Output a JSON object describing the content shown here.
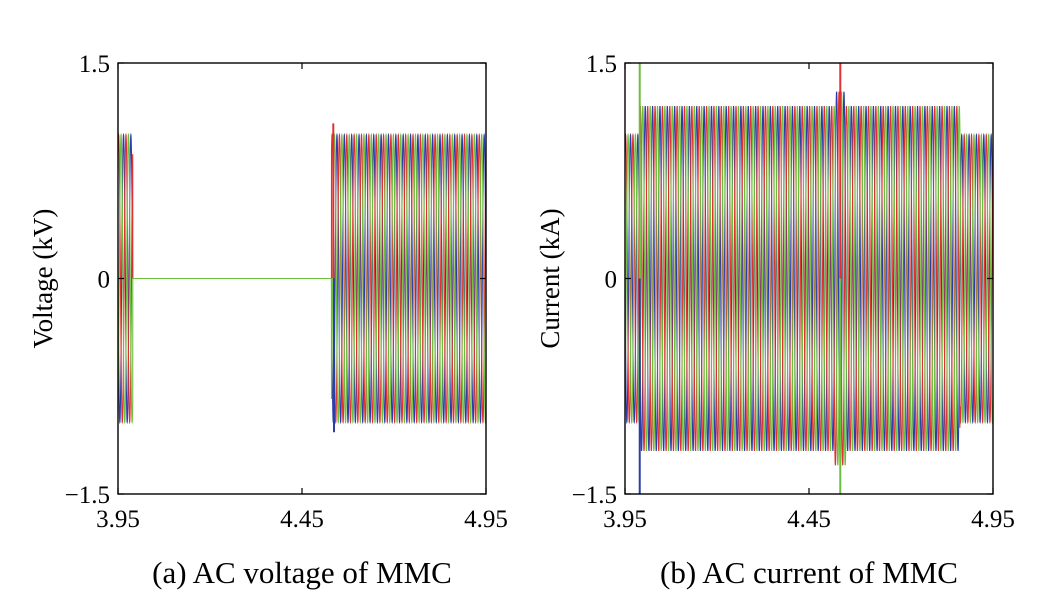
{
  "chart_data": [
    {
      "type": "line",
      "caption": "(a) AC voltage of MMC",
      "ylabel": "Voltage (kV)",
      "xlabel": "",
      "xlim": [
        3.95,
        4.95
      ],
      "ylim": [
        -1.5,
        1.5
      ],
      "xticks": [
        3.95,
        4.45,
        4.95
      ],
      "xtick_labels": [
        "3.95",
        "4.45",
        "4.95"
      ],
      "yticks": [
        -1.5,
        0,
        1.5
      ],
      "ytick_labels": [
        "−1.5",
        "0",
        "1.5"
      ],
      "grid": false,
      "legend": "none",
      "frequency_hz": 50,
      "series": [
        {
          "color": "#2b3ea8",
          "phase_deg": 0
        },
        {
          "color": "#e03030",
          "phase_deg": -120
        },
        {
          "color": "#6cbf3c",
          "phase_deg": 120
        }
      ],
      "envelope": [
        {
          "t0": 3.95,
          "t1": 3.99,
          "amplitude": 1.0
        },
        {
          "t0": 3.99,
          "t1": 4.53,
          "amplitude": 0.0
        },
        {
          "t0": 4.53,
          "t1": 4.95,
          "amplitude": 1.0
        }
      ],
      "transients": [
        {
          "t": 4.535,
          "value": 1.08,
          "color": "#e03030"
        },
        {
          "t": 4.537,
          "value": -1.07,
          "color": "#2b3ea8"
        }
      ]
    },
    {
      "type": "line",
      "caption": "(b) AC current of MMC",
      "ylabel": "Current (kA)",
      "xlabel": "",
      "xlim": [
        3.95,
        4.95
      ],
      "ylim": [
        -1.5,
        1.5
      ],
      "xticks": [
        3.95,
        4.45,
        4.95
      ],
      "xtick_labels": [
        "3.95",
        "4.45",
        "4.95"
      ],
      "yticks": [
        -1.5,
        0,
        1.5
      ],
      "ytick_labels": [
        "−1.5",
        "0",
        "1.5"
      ],
      "grid": false,
      "legend": "none",
      "frequency_hz": 50,
      "series": [
        {
          "color": "#2b3ea8",
          "phase_deg": 0
        },
        {
          "color": "#e03030",
          "phase_deg": -120
        },
        {
          "color": "#6cbf3c",
          "phase_deg": 120
        }
      ],
      "envelope": [
        {
          "t0": 3.95,
          "t1": 3.99,
          "amplitude": 1.0
        },
        {
          "t0": 3.99,
          "t1": 4.01,
          "amplitude": 1.2
        },
        {
          "t0": 4.01,
          "t1": 4.52,
          "amplitude": 1.2
        },
        {
          "t0": 4.52,
          "t1": 4.55,
          "amplitude": 1.3
        },
        {
          "t0": 4.55,
          "t1": 4.86,
          "amplitude": 1.2
        },
        {
          "t0": 4.86,
          "t1": 4.95,
          "amplitude": 1.0
        }
      ],
      "transients": [
        {
          "t": 3.99,
          "value": 1.5,
          "color": "#6cbf3c"
        },
        {
          "t": 3.99,
          "value": -1.5,
          "color": "#2b3ea8"
        },
        {
          "t": 4.535,
          "value": 1.5,
          "color": "#e03030"
        },
        {
          "t": 4.535,
          "value": -1.5,
          "color": "#6cbf3c"
        }
      ]
    }
  ]
}
